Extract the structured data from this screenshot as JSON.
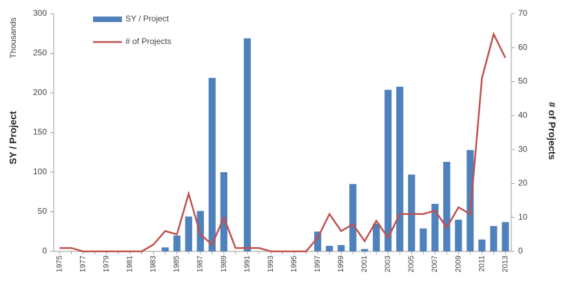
{
  "chart_data": {
    "type": "combo",
    "y_label": "SY / Project",
    "y_unit": "Thousands",
    "y2_label": "# of Projects",
    "categories": [
      "1975",
      null,
      "1977",
      null,
      "1979",
      null,
      "1981",
      null,
      "1983",
      null,
      "1985",
      null,
      "1987",
      null,
      "1989",
      null,
      "1991",
      null,
      "1993",
      null,
      "1995",
      null,
      "1997",
      null,
      "1999",
      null,
      "2001",
      null,
      "2003",
      null,
      "2005",
      null,
      "2007",
      null,
      "2009",
      null,
      "2011",
      null,
      "2013"
    ],
    "series": [
      {
        "name": "SY / Project",
        "type": "bar",
        "color": "#4f81bd",
        "values": [
          0,
          0,
          0,
          0,
          0,
          0,
          0,
          0,
          0,
          5,
          20,
          44,
          51,
          219,
          100,
          0,
          269,
          0,
          0,
          0,
          0,
          0,
          25,
          7,
          8,
          85,
          3,
          35,
          204,
          208,
          97,
          29,
          60,
          113,
          40,
          128,
          15,
          32,
          37
        ]
      },
      {
        "name": "# of Projects",
        "type": "line",
        "color": "#c0504d",
        "axis": "y2",
        "values": [
          1,
          1,
          0,
          0,
          0,
          0,
          0,
          0,
          2,
          6,
          5,
          17,
          5,
          2,
          10,
          1,
          1,
          1,
          0,
          0,
          0,
          0,
          4,
          11,
          6,
          8,
          3,
          9,
          4,
          11,
          11,
          11,
          12,
          7,
          13,
          11,
          51,
          64,
          57
        ]
      }
    ],
    "ylim": [
      0,
      300
    ],
    "yticks": [
      0,
      50,
      100,
      150,
      200,
      250,
      300
    ],
    "y2lim": [
      0,
      70
    ],
    "y2ticks": [
      0,
      10,
      20,
      30,
      40,
      50,
      60,
      70
    ],
    "legend": "upper left",
    "grid": false
  }
}
